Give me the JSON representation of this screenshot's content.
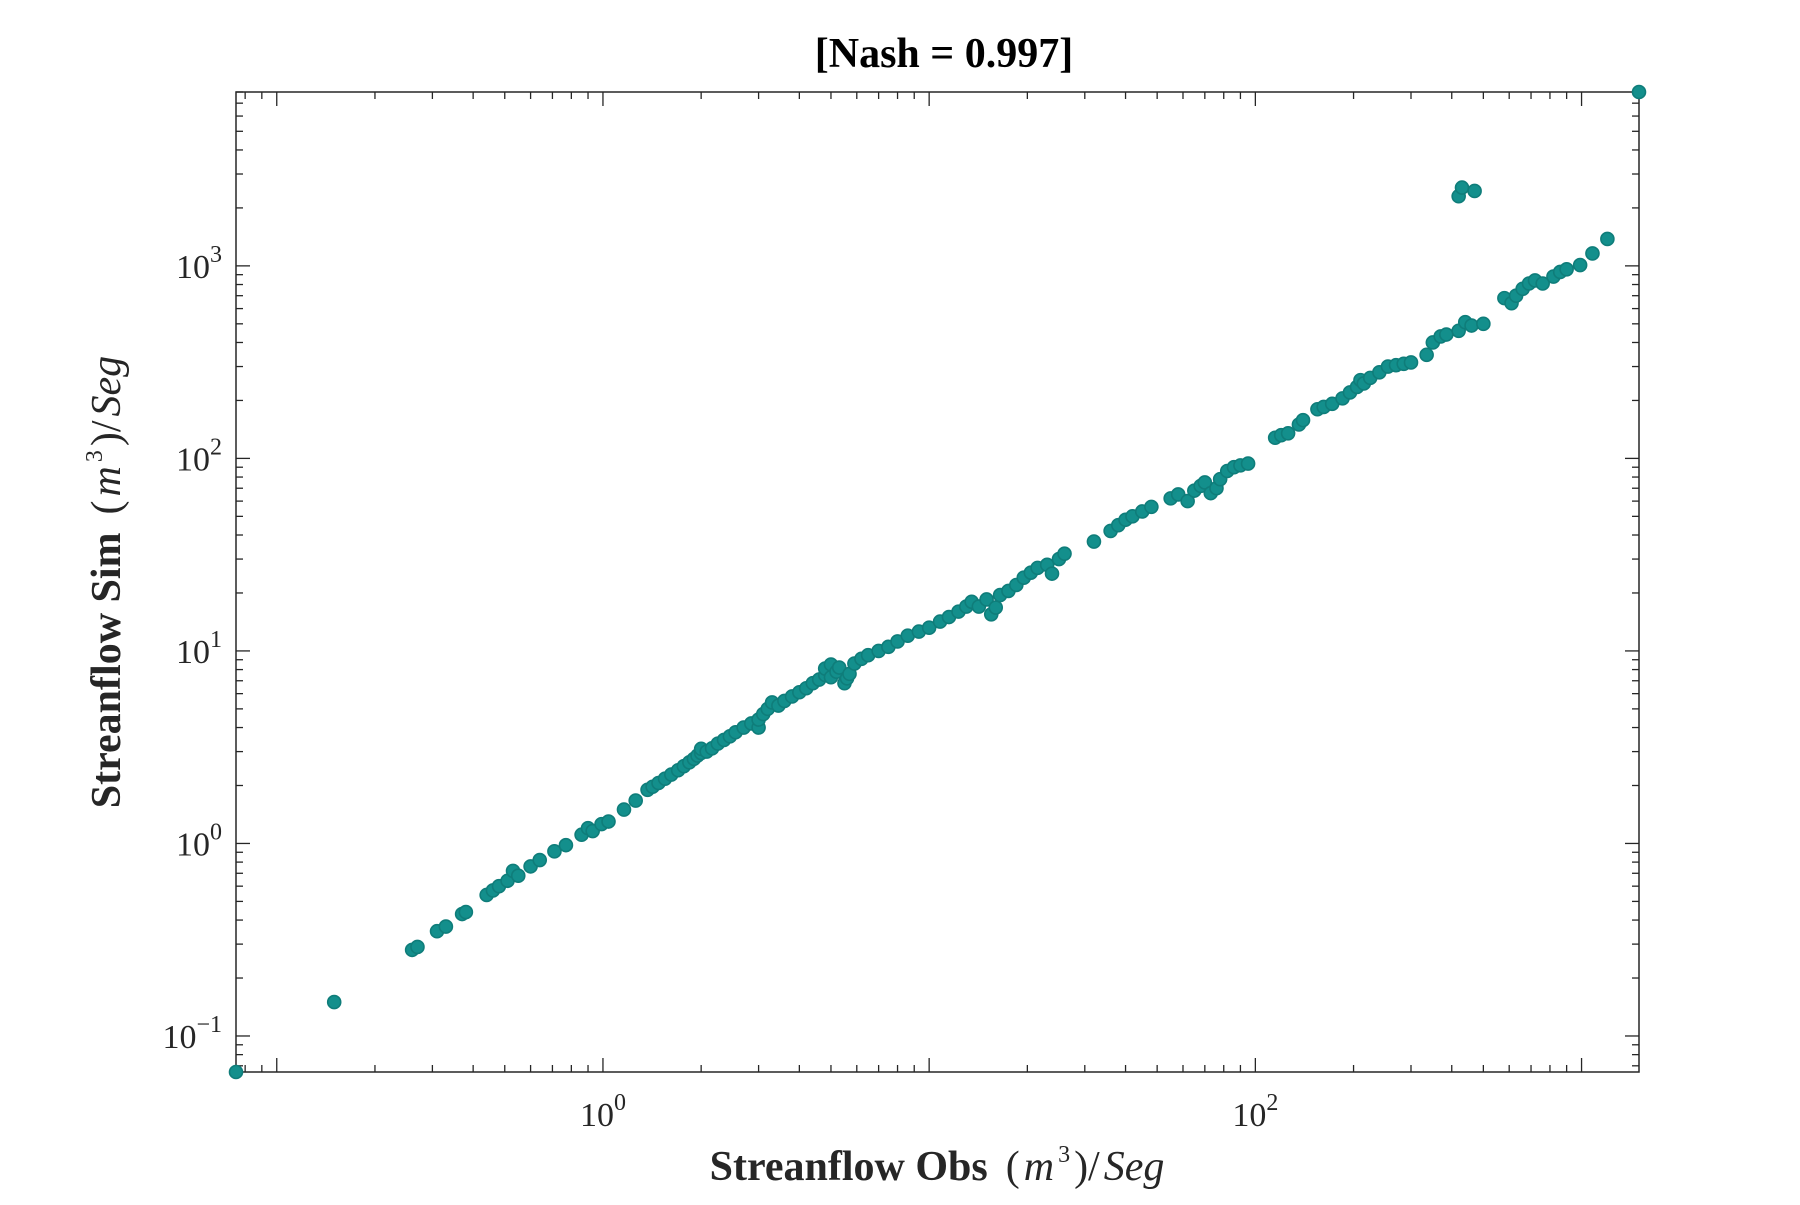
{
  "chart_data": {
    "type": "scatter",
    "title": "[Nash = 0.997]",
    "xlabel": "Streanflow Obs (m³)/Seg",
    "ylabel": "Streanflow Sim (m³)/Seg",
    "xlabel_parts": {
      "bold": "Streanflow Obs",
      "open": "(",
      "var": "m",
      "sup": "3",
      "close": ")/",
      "unit": "Seg"
    },
    "ylabel_parts": {
      "bold": "Streanflow Sim",
      "open": "(",
      "var": "m",
      "sup": "3",
      "close": ")/",
      "unit": "Seg"
    },
    "x_scale": "log",
    "y_scale": "log",
    "xlim": [
      0.075,
      1500
    ],
    "ylim": [
      0.065,
      8000
    ],
    "x_ticks": [
      {
        "value": 1,
        "base": "10",
        "exp": "0"
      },
      {
        "value": 100,
        "base": "10",
        "exp": "2"
      }
    ],
    "y_ticks": [
      {
        "value": 0.1,
        "base": "10",
        "exp": "−1"
      },
      {
        "value": 1,
        "base": "10",
        "exp": "0"
      },
      {
        "value": 10,
        "base": "10",
        "exp": "1"
      },
      {
        "value": 100,
        "base": "10",
        "exp": "2"
      },
      {
        "value": 1000,
        "base": "10",
        "exp": "3"
      }
    ],
    "grid": false,
    "marker_color": "#138f8c",
    "marker_edge": "#0f7d7a",
    "points": [
      [
        0.075,
        0.065
      ],
      [
        0.15,
        0.15
      ],
      [
        0.26,
        0.28
      ],
      [
        0.27,
        0.29
      ],
      [
        0.31,
        0.35
      ],
      [
        0.33,
        0.37
      ],
      [
        0.37,
        0.43
      ],
      [
        0.38,
        0.44
      ],
      [
        0.44,
        0.54
      ],
      [
        0.46,
        0.57
      ],
      [
        0.48,
        0.6
      ],
      [
        0.51,
        0.64
      ],
      [
        0.53,
        0.72
      ],
      [
        0.55,
        0.68
      ],
      [
        0.6,
        0.76
      ],
      [
        0.64,
        0.82
      ],
      [
        0.71,
        0.91
      ],
      [
        0.77,
        0.98
      ],
      [
        0.86,
        1.11
      ],
      [
        0.9,
        1.2
      ],
      [
        0.93,
        1.16
      ],
      [
        0.99,
        1.26
      ],
      [
        1.04,
        1.3
      ],
      [
        1.16,
        1.5
      ],
      [
        1.26,
        1.67
      ],
      [
        1.37,
        1.9
      ],
      [
        1.42,
        1.97
      ],
      [
        1.48,
        2.06
      ],
      [
        1.55,
        2.17
      ],
      [
        1.62,
        2.28
      ],
      [
        1.7,
        2.4
      ],
      [
        1.77,
        2.52
      ],
      [
        1.84,
        2.64
      ],
      [
        1.9,
        2.75
      ],
      [
        1.95,
        2.86
      ],
      [
        2.0,
        2.95
      ],
      [
        2.0,
        3.1
      ],
      [
        2.08,
        3.0
      ],
      [
        2.16,
        3.12
      ],
      [
        2.25,
        3.3
      ],
      [
        2.35,
        3.45
      ],
      [
        2.45,
        3.6
      ],
      [
        2.55,
        3.78
      ],
      [
        2.7,
        4.0
      ],
      [
        2.85,
        4.2
      ],
      [
        3.0,
        4.0
      ],
      [
        3.0,
        4.4
      ],
      [
        3.1,
        4.7
      ],
      [
        3.2,
        5.0
      ],
      [
        3.3,
        5.4
      ],
      [
        3.45,
        5.2
      ],
      [
        3.6,
        5.5
      ],
      [
        3.8,
        5.8
      ],
      [
        4.0,
        6.1
      ],
      [
        4.2,
        6.4
      ],
      [
        4.4,
        6.8
      ],
      [
        4.6,
        7.1
      ],
      [
        4.8,
        7.5
      ],
      [
        4.8,
        8.1
      ],
      [
        5.0,
        7.3
      ],
      [
        5.0,
        8.5
      ],
      [
        5.2,
        7.8
      ],
      [
        5.3,
        8.2
      ],
      [
        5.5,
        6.8
      ],
      [
        5.6,
        7.2
      ],
      [
        5.7,
        7.6
      ],
      [
        5.9,
        8.6
      ],
      [
        6.2,
        9.1
      ],
      [
        6.5,
        9.5
      ],
      [
        7.0,
        10.0
      ],
      [
        7.5,
        10.5
      ],
      [
        8.0,
        11.2
      ],
      [
        8.6,
        12.0
      ],
      [
        9.3,
        12.6
      ],
      [
        10.0,
        13.2
      ],
      [
        10.8,
        14.2
      ],
      [
        11.5,
        15.0
      ],
      [
        12.3,
        16.0
      ],
      [
        13.0,
        17.0
      ],
      [
        13.5,
        18.0
      ],
      [
        14.2,
        17.0
      ],
      [
        15.0,
        18.5
      ],
      [
        15.5,
        15.5
      ],
      [
        16.0,
        16.8
      ],
      [
        16.5,
        19.5
      ],
      [
        17.5,
        20.5
      ],
      [
        18.5,
        22.0
      ],
      [
        19.5,
        24.0
      ],
      [
        20.5,
        25.5
      ],
      [
        21.5,
        27.0
      ],
      [
        23.0,
        28.0
      ],
      [
        25.0,
        30.0
      ],
      [
        26.0,
        32.0
      ],
      [
        23.8,
        25.2
      ],
      [
        32.0,
        37.0
      ],
      [
        36.0,
        42.0
      ],
      [
        38.0,
        45.0
      ],
      [
        40.0,
        48.0
      ],
      [
        42.0,
        50.0
      ],
      [
        45.0,
        53.0
      ],
      [
        48.0,
        56.0
      ],
      [
        55.0,
        62.0
      ],
      [
        58.0,
        65.0
      ],
      [
        62.0,
        60.0
      ],
      [
        65.0,
        68.0
      ],
      [
        68.0,
        72.0
      ],
      [
        70.0,
        75.0
      ],
      [
        73.0,
        66.0
      ],
      [
        76.0,
        70.0
      ],
      [
        78.0,
        78.0
      ],
      [
        82.0,
        86.0
      ],
      [
        86.0,
        90.0
      ],
      [
        90.0,
        92.0
      ],
      [
        95.0,
        94.0
      ],
      [
        115.0,
        128.0
      ],
      [
        120.0,
        132.0
      ],
      [
        126.0,
        135.0
      ],
      [
        136.0,
        150.0
      ],
      [
        140.0,
        158.0
      ],
      [
        155.0,
        180.0
      ],
      [
        162.0,
        185.0
      ],
      [
        172.0,
        192.0
      ],
      [
        185.0,
        205.0
      ],
      [
        195.0,
        220.0
      ],
      [
        205.0,
        235.0
      ],
      [
        210.0,
        255.0
      ],
      [
        215.0,
        245.0
      ],
      [
        225.0,
        262.0
      ],
      [
        240.0,
        280.0
      ],
      [
        255.0,
        300.0
      ],
      [
        270.0,
        305.0
      ],
      [
        285.0,
        310.0
      ],
      [
        300.0,
        315.0
      ],
      [
        335.0,
        345.0
      ],
      [
        350.0,
        400.0
      ],
      [
        370.0,
        430.0
      ],
      [
        385.0,
        440.0
      ],
      [
        420.0,
        460.0
      ],
      [
        440.0,
        510.0
      ],
      [
        460.0,
        490.0
      ],
      [
        500.0,
        500.0
      ],
      [
        580.0,
        680.0
      ],
      [
        610.0,
        640.0
      ],
      [
        630.0,
        700.0
      ],
      [
        660.0,
        760.0
      ],
      [
        690.0,
        810.0
      ],
      [
        720.0,
        840.0
      ],
      [
        760.0,
        810.0
      ],
      [
        820.0,
        880.0
      ],
      [
        860.0,
        930.0
      ],
      [
        900.0,
        960.0
      ],
      [
        990.0,
        1010.0
      ],
      [
        1080.0,
        1160.0
      ],
      [
        1200.0,
        1380.0
      ],
      [
        420.0,
        2300.0
      ],
      [
        430.0,
        2550.0
      ],
      [
        470.0,
        2450.0
      ],
      [
        1500.0,
        8000.0
      ]
    ]
  }
}
